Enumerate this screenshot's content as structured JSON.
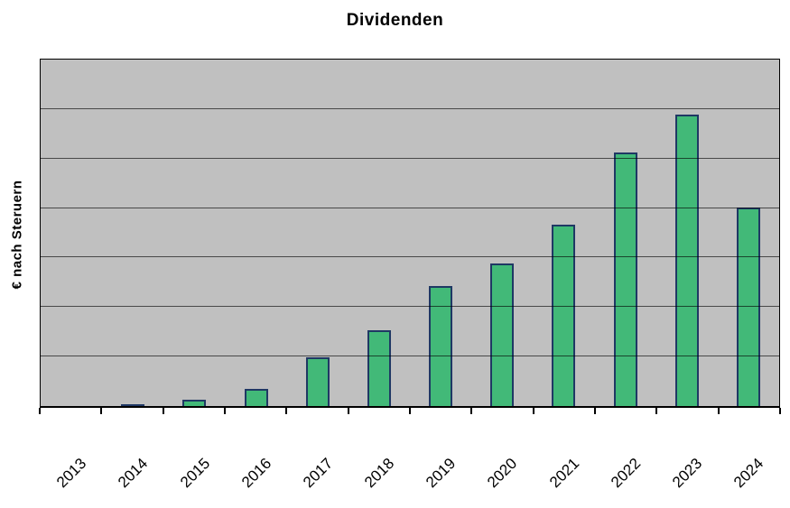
{
  "chart_data": {
    "type": "bar",
    "title": "Dividenden",
    "xlabel": "",
    "ylabel": "€ nach Steruern",
    "categories": [
      "2013",
      "2014",
      "2015",
      "2016",
      "2017",
      "2018",
      "2019",
      "2020",
      "2021",
      "2022",
      "2023",
      "2024"
    ],
    "values": [
      0,
      0.04,
      0.12,
      0.35,
      0.98,
      1.54,
      2.42,
      2.88,
      3.67,
      5.12,
      5.88,
      4.01
    ],
    "value_unit": "gridline-intervals (y axis shows no numeric tick labels)",
    "ylim": [
      0,
      7
    ],
    "y_gridline_step": 1,
    "grid": true,
    "legend": false,
    "x_tick_label_rotation_deg": 45,
    "bar_fill": "#42B978",
    "bar_border": "#1F3864",
    "plot_background": "#C0C0C0",
    "axis_color": "#000000",
    "page_background": "#FFFFFF"
  }
}
